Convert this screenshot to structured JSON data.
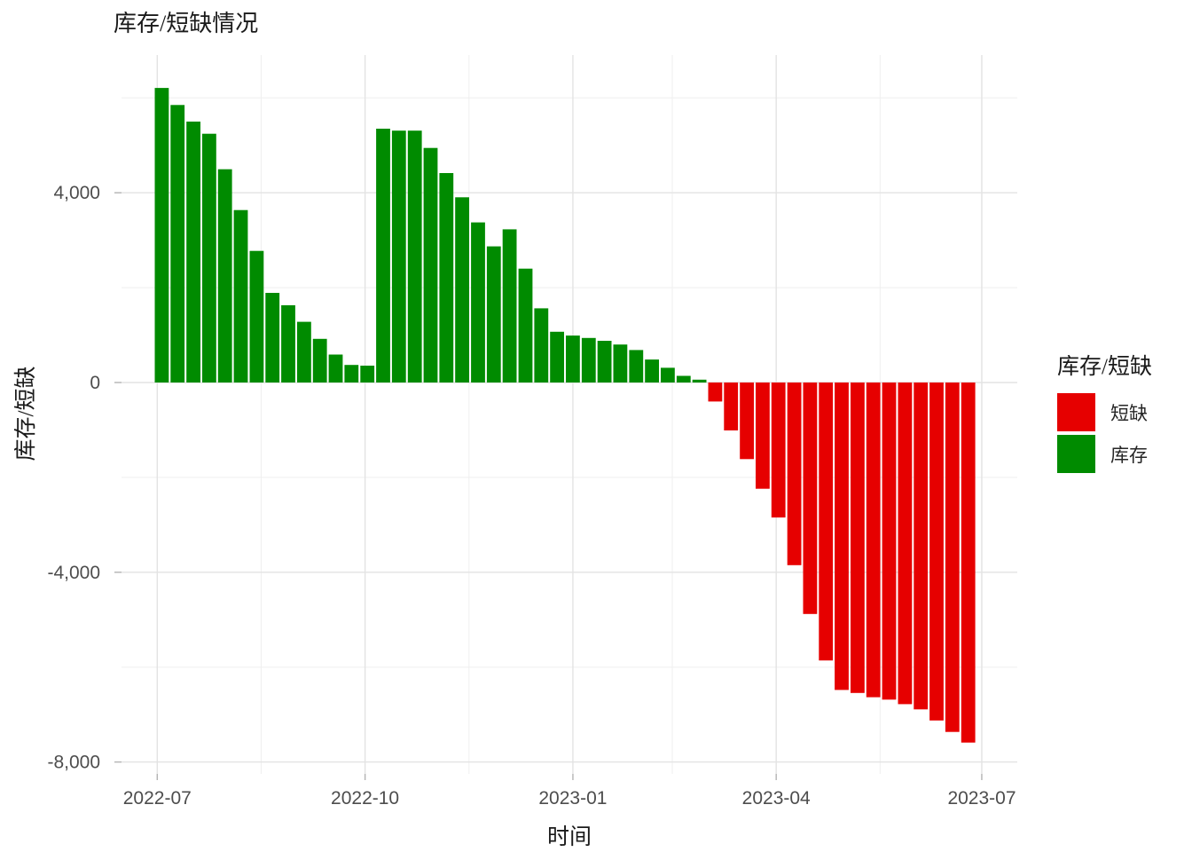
{
  "chart_data": {
    "type": "bar",
    "title": "库存/短缺情况",
    "xlabel": "时间",
    "ylabel": "库存/短缺",
    "x": [
      "2022-07-03",
      "2022-07-10",
      "2022-07-17",
      "2022-07-24",
      "2022-07-31",
      "2022-08-07",
      "2022-08-14",
      "2022-08-21",
      "2022-08-28",
      "2022-09-04",
      "2022-09-11",
      "2022-09-18",
      "2022-09-25",
      "2022-10-02",
      "2022-10-09",
      "2022-10-16",
      "2022-10-23",
      "2022-10-30",
      "2022-11-06",
      "2022-11-13",
      "2022-11-20",
      "2022-11-27",
      "2022-12-04",
      "2022-12-11",
      "2022-12-18",
      "2022-12-25",
      "2023-01-01",
      "2023-01-08",
      "2023-01-15",
      "2023-01-22",
      "2023-01-29",
      "2023-02-05",
      "2023-02-12",
      "2023-02-19",
      "2023-02-26",
      "2023-03-05",
      "2023-03-12",
      "2023-03-19",
      "2023-03-26",
      "2023-04-02",
      "2023-04-09",
      "2023-04-16",
      "2023-04-23",
      "2023-04-30",
      "2023-05-07",
      "2023-05-14",
      "2023-05-21",
      "2023-05-28",
      "2023-06-04",
      "2023-06-11",
      "2023-06-18",
      "2023-06-25"
    ],
    "values": [
      6210,
      5850,
      5500,
      5245,
      4495,
      3635,
      2775,
      1890,
      1630,
      1280,
      920,
      590,
      370,
      355,
      5350,
      5310,
      5310,
      4945,
      4415,
      3905,
      3375,
      2870,
      3230,
      2400,
      1565,
      1070,
      990,
      940,
      880,
      800,
      685,
      485,
      310,
      140,
      60,
      -400,
      -1010,
      -1615,
      -2240,
      -2845,
      -3850,
      -4880,
      -5860,
      -6480,
      -6545,
      -6635,
      -6685,
      -6780,
      -6890,
      -7125,
      -7365,
      -7590
    ],
    "series": [
      {
        "name": "库存",
        "rule": "value >= 0",
        "color": "#008B00"
      },
      {
        "name": "短缺",
        "rule": "value < 0",
        "color": "#E60000"
      }
    ],
    "x_axis": {
      "major_breaks": [
        "2022-07-01",
        "2022-10-01",
        "2023-01-01",
        "2023-04-01",
        "2023-07-01"
      ],
      "labels": [
        "2022-07",
        "2022-10",
        "2023-01",
        "2023-04",
        "2023-07"
      ],
      "minor_breaks": [
        "2022-08-16",
        "2022-11-16",
        "2023-02-14",
        "2023-05-17"
      ]
    },
    "y_axis": {
      "major_breaks": [
        4000,
        0,
        -4000,
        -8000
      ],
      "labels": [
        "4,000",
        "0",
        "-4,000",
        "-8,000"
      ],
      "minor_breaks": [
        6000,
        2000,
        -2000,
        -6000
      ],
      "range": [
        -8280,
        6890
      ]
    },
    "legend": {
      "title": "库存/短缺",
      "position": "right",
      "entries": [
        {
          "label": "短缺",
          "color": "#E60000"
        },
        {
          "label": "库存",
          "color": "#008B00"
        }
      ]
    },
    "grid": true,
    "colors": {
      "major_grid": "#E3E3E3",
      "minor_grid": "#EFEFEF",
      "tick": "#B3B3B3",
      "tick_label": "#4D4D4D"
    }
  }
}
